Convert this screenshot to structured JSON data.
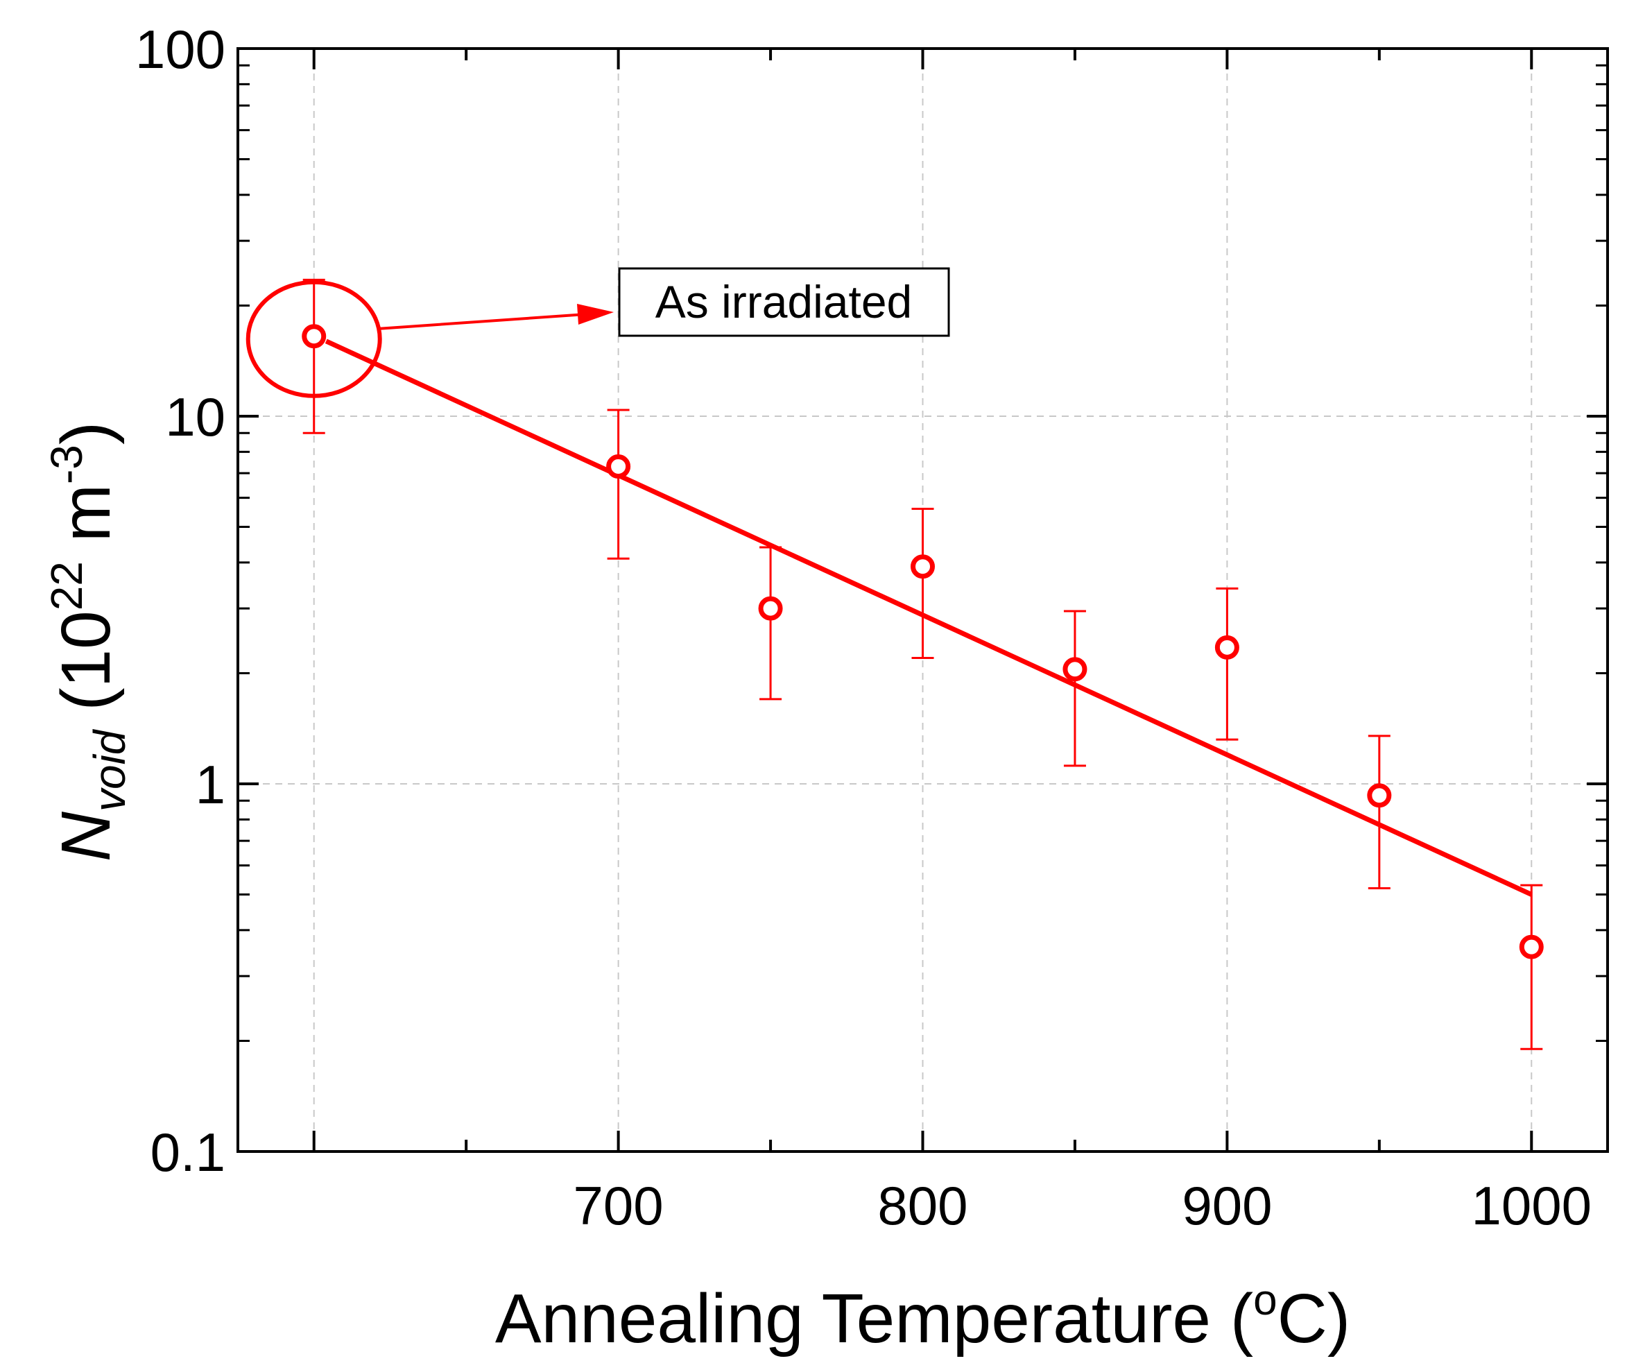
{
  "chart_data": {
    "type": "scatter",
    "x_label": {
      "prefix": "Annealing Temperature (",
      "sup": "o",
      "suffix": "C)"
    },
    "y_label": {
      "symbol": "N",
      "subscript": "void",
      "unit_open": " (10",
      "exp": "22",
      "unit_mid": " m",
      "exp2": "-3",
      "unit_close": ")"
    },
    "x_range": [
      575,
      1025
    ],
    "y_range": [
      0.1,
      100
    ],
    "y_scale": "log",
    "grid": true,
    "x_ticks": [
      700,
      800,
      900,
      1000
    ],
    "x_tick_labels": [
      "700",
      "800",
      "900",
      "1000"
    ],
    "y_ticks": [
      0.1,
      1,
      10,
      100
    ],
    "y_tick_labels": [
      "0.1",
      "1",
      "10",
      "100"
    ],
    "series": [
      {
        "color": "#ff0000",
        "marker": "open-circle",
        "points": [
          {
            "x": 600,
            "y": 16.5,
            "err_low": 9.0,
            "err_high": 23.5
          },
          {
            "x": 700,
            "y": 7.3,
            "err_low": 4.1,
            "err_high": 10.4
          },
          {
            "x": 750,
            "y": 3.0,
            "err_low": 1.7,
            "err_high": 4.4
          },
          {
            "x": 800,
            "y": 3.9,
            "err_low": 2.2,
            "err_high": 5.6
          },
          {
            "x": 850,
            "y": 2.05,
            "err_low": 1.12,
            "err_high": 2.95
          },
          {
            "x": 900,
            "y": 2.35,
            "err_low": 1.32,
            "err_high": 3.4
          },
          {
            "x": 950,
            "y": 0.93,
            "err_low": 0.52,
            "err_high": 1.35
          },
          {
            "x": 1000,
            "y": 0.36,
            "err_low": 0.19,
            "err_high": 0.53
          }
        ]
      }
    ],
    "fit_line": {
      "color": "#ff0000",
      "points": [
        [
          604,
          16.0
        ],
        [
          1000,
          0.5
        ]
      ]
    },
    "annotation": {
      "text": "As irradiated",
      "target_x": 600,
      "target_y": 16.5
    }
  }
}
